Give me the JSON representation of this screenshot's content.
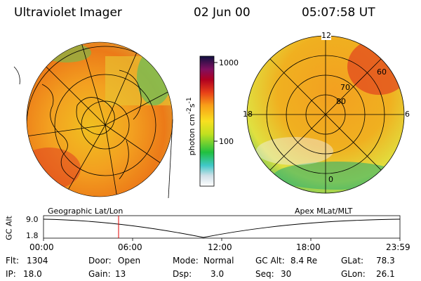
{
  "header": {
    "title": "Ultraviolet Imager",
    "date": "02 Jun 00",
    "time": "05:07:58 UT"
  },
  "colorbar": {
    "label": "photon cm",
    "label_sup1": "-2",
    "label_mid": "s",
    "label_sup2": "-1",
    "ticks": [
      "1000",
      "100"
    ]
  },
  "left_panel": {
    "caption": "Geographic Lat/Lon"
  },
  "right_panel": {
    "caption": "Apex MLat/MLT",
    "lat_labels": [
      "80",
      "70",
      "60"
    ],
    "mlt_labels": [
      "12",
      "18",
      "6",
      "0"
    ]
  },
  "altitude_plot": {
    "ylabel": "GC Alt",
    "yticks": [
      "9.0",
      "1.8"
    ],
    "xticks": [
      "00:00",
      "06:00",
      "12:00",
      "18:00",
      "23:59"
    ]
  },
  "info": {
    "flt_label": "Flt:",
    "flt_value": "1304",
    "ip_label": "IP:",
    "ip_value": "18.0",
    "door_label": "Door:",
    "door_value": "Open",
    "gain_label": "Gain:",
    "gain_value": "13",
    "mode_label": "Mode:",
    "mode_value": "Normal",
    "dsp_label": "Dsp:",
    "dsp_value": "3.0",
    "gcalt_label": "GC Alt:",
    "gcalt_value": "8.4 Re",
    "seq_label": "Seq:",
    "seq_value": "30",
    "glat_label": "GLat:",
    "glat_value": "78.3",
    "glon_label": "GLon:",
    "glon_value": "26.1"
  },
  "colors": {
    "red_marker": "#e00000"
  }
}
